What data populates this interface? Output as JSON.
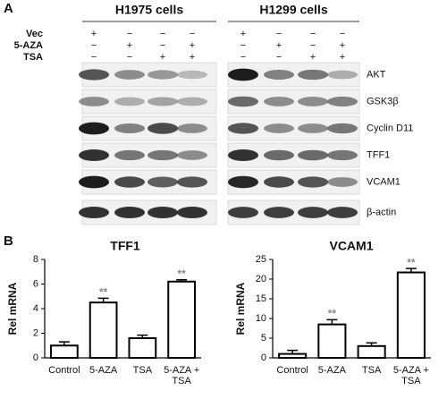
{
  "panel_labels": [
    "A",
    "B"
  ],
  "panel_a": {
    "treatments": [
      "Vec",
      "5-AZA",
      "TSA"
    ],
    "groups": [
      {
        "name": "H1975 cells",
        "signs": [
          [
            "+",
            "−",
            "−",
            "−"
          ],
          [
            "−",
            "+",
            "−",
            "+"
          ],
          [
            "−",
            "−",
            "+",
            "+"
          ]
        ]
      },
      {
        "name": "H1299 cells",
        "signs": [
          [
            "+",
            "−",
            "−",
            "−"
          ],
          [
            "−",
            "+",
            "−",
            "+"
          ],
          [
            "−",
            "−",
            "+",
            "+"
          ]
        ]
      }
    ],
    "proteins": [
      "AKT",
      "GSK3β",
      "Cyclin D11",
      "TFF1",
      "VCAM1",
      "β-actin"
    ]
  },
  "chart_data": [
    {
      "type": "bar",
      "title": "TFF1",
      "y_label": "Rel mRNA",
      "categories": [
        "Control",
        "5-AZA",
        "TSA",
        "5-AZA + TSA"
      ],
      "values": [
        1.0,
        4.5,
        1.6,
        6.2
      ],
      "errors": [
        0.3,
        0.35,
        0.25,
        0.15
      ],
      "significance": [
        null,
        "**",
        null,
        "**"
      ],
      "ylim": [
        0,
        8
      ],
      "yticks": [
        0,
        2,
        4,
        6,
        8
      ],
      "color": "#ffffff"
    },
    {
      "type": "bar",
      "title": "VCAM1",
      "y_label": "Rel mRNA",
      "categories": [
        "Control",
        "5-AZA",
        "TSA",
        "5-AZA + TSA"
      ],
      "values": [
        1.0,
        8.5,
        3.0,
        21.7
      ],
      "errors": [
        0.9,
        1.2,
        0.8,
        1.0
      ],
      "significance": [
        null,
        "**",
        null,
        "**"
      ],
      "ylim": [
        0,
        25
      ],
      "yticks": [
        0,
        5,
        10,
        15,
        20,
        25
      ],
      "color": "#ffffff"
    }
  ]
}
